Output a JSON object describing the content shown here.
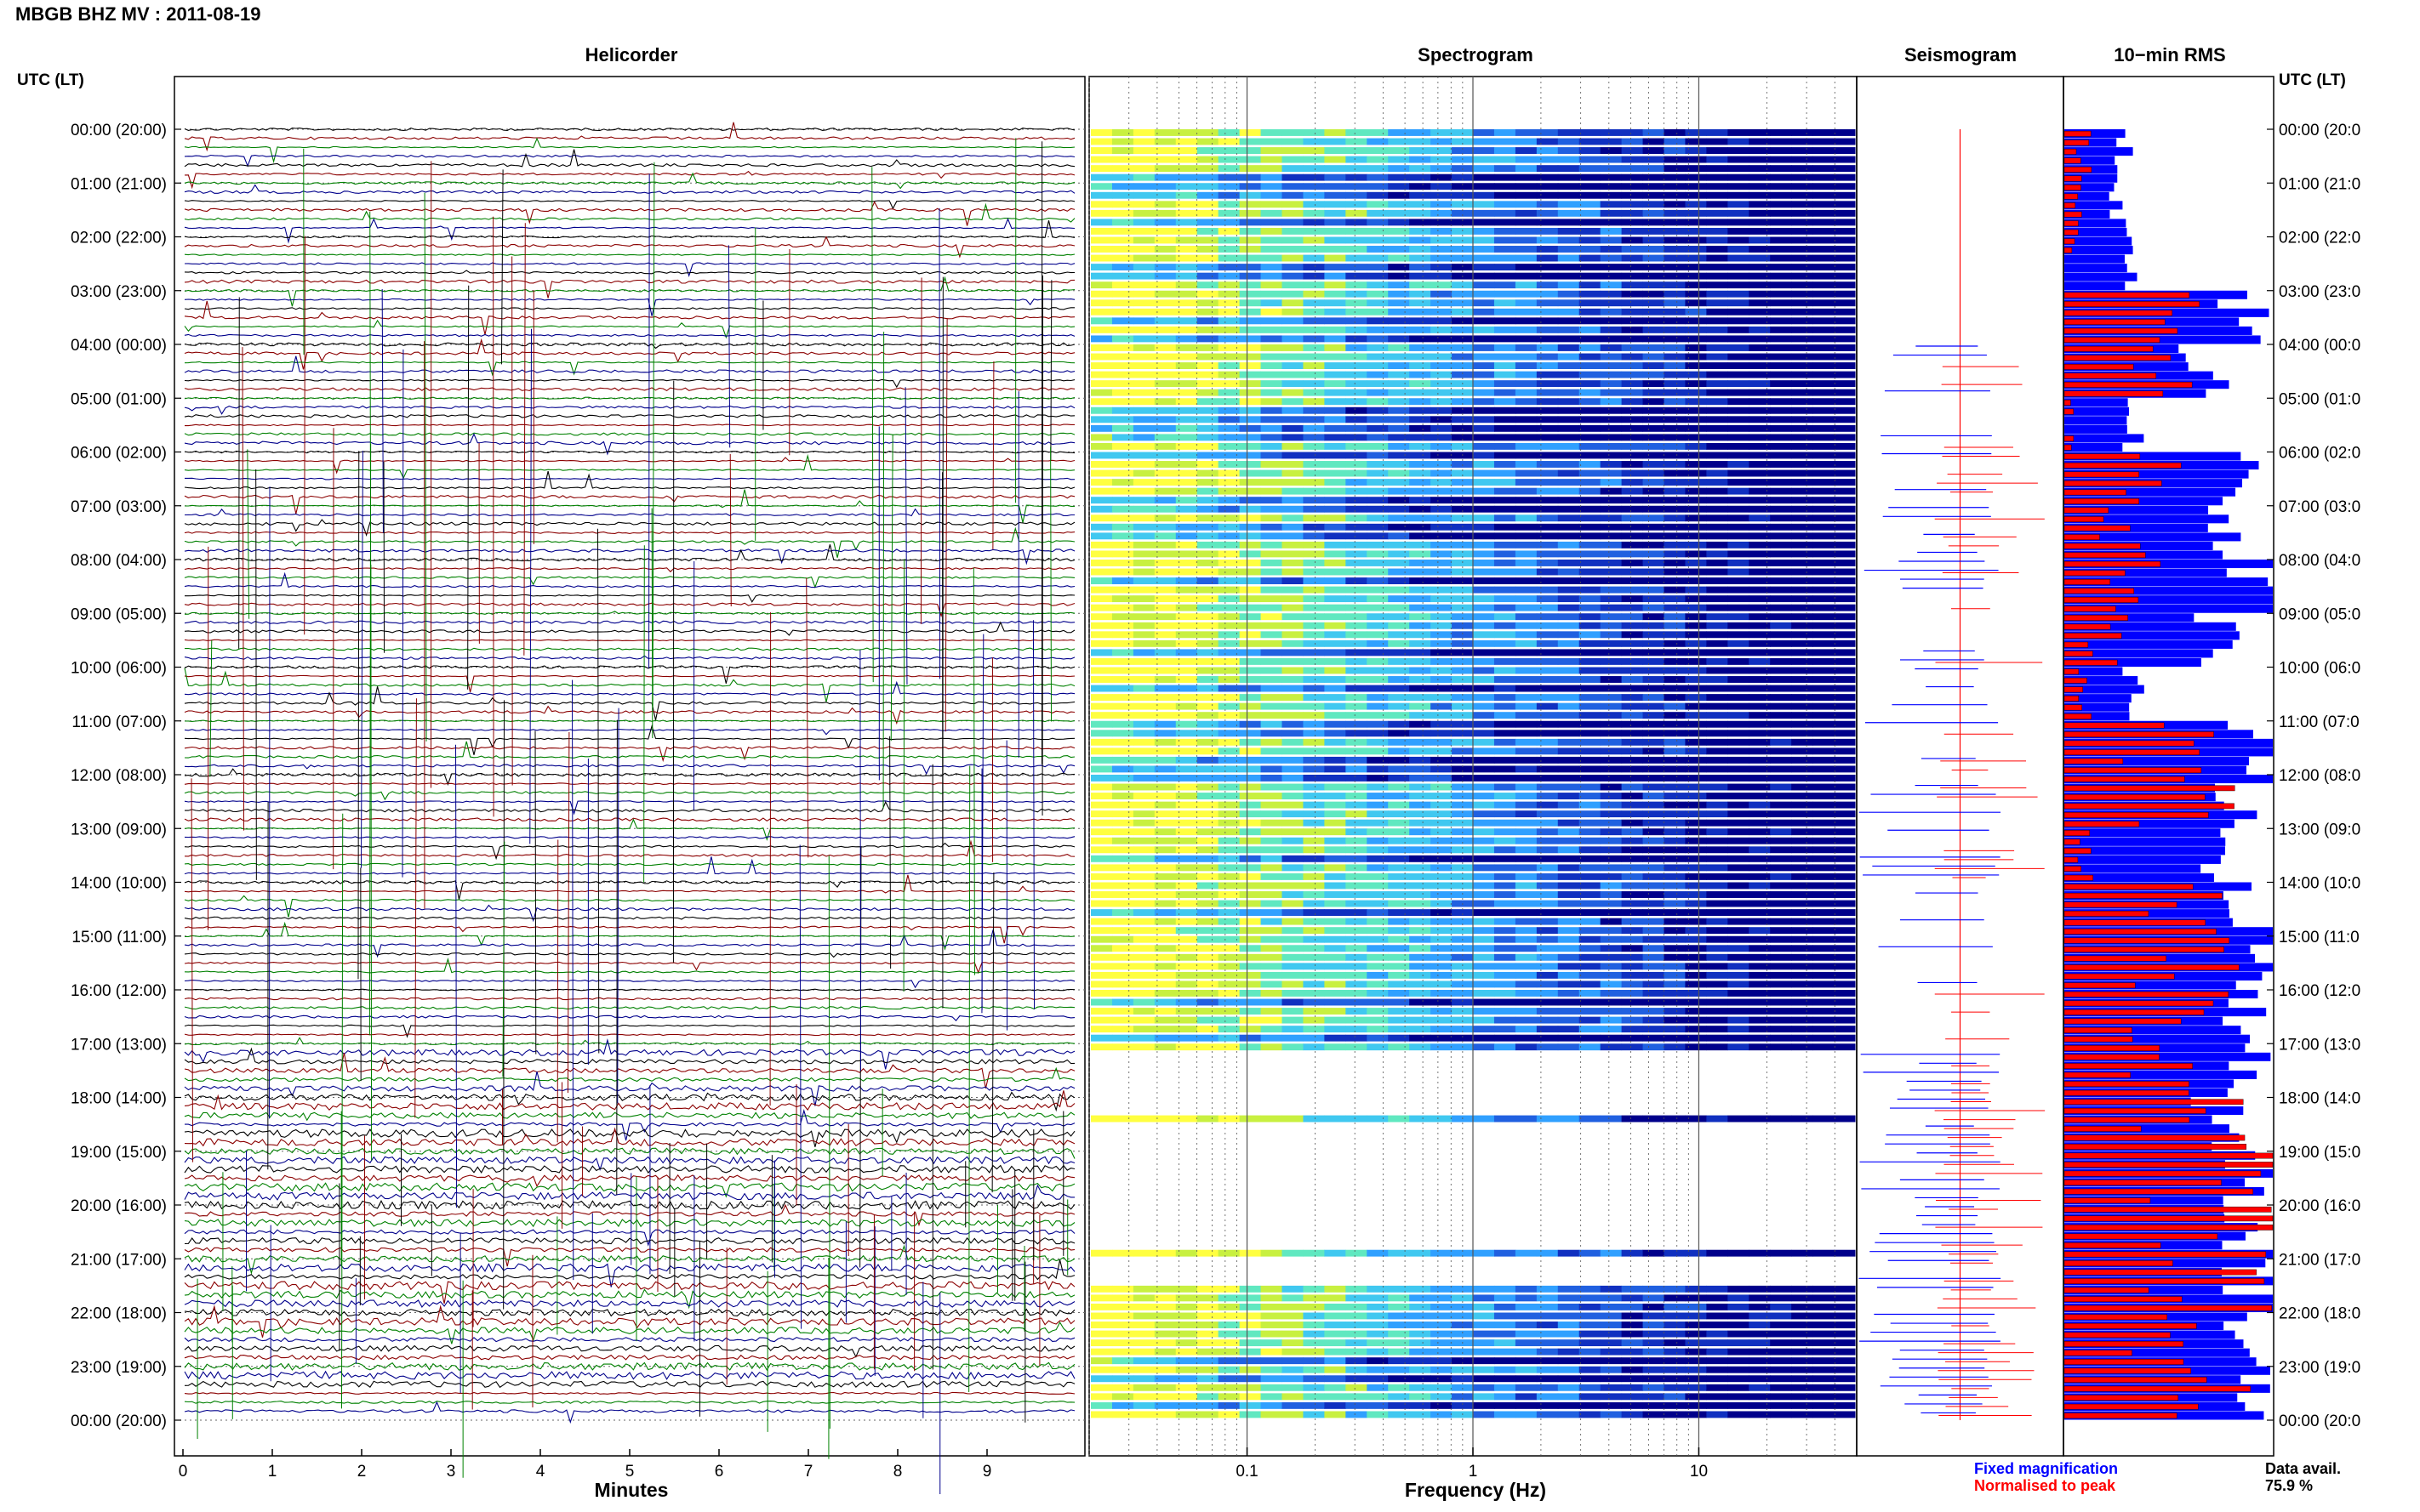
{
  "title": "MBGB BHZ MV : 2011-08-19",
  "panels": {
    "helicorder": "Helicorder",
    "spectrogram": "Spectrogram",
    "seismogram": "Seismogram",
    "rms": "10−min RMS"
  },
  "utc_label_left": "UTC (LT)",
  "utc_label_right": "UTC (LT)",
  "time_labels": [
    "00:00 (20:00)",
    "01:00 (21:00)",
    "02:00 (22:00)",
    "03:00 (23:00)",
    "04:00 (00:00)",
    "05:00 (01:00)",
    "06:00 (02:00)",
    "07:00 (03:00)",
    "08:00 (04:00)",
    "09:00 (05:00)",
    "10:00 (06:00)",
    "11:00 (07:00)",
    "12:00 (08:00)",
    "13:00 (09:00)",
    "14:00 (10:00)",
    "15:00 (11:00)",
    "16:00 (12:00)",
    "17:00 (13:00)",
    "18:00 (14:00)",
    "19:00 (15:00)",
    "20:00 (16:00)",
    "21:00 (17:00)",
    "22:00 (18:00)",
    "23:00 (19:00)",
    "00:00 (20:00)"
  ],
  "time_labels_right": [
    "00:00 (20:0",
    "01:00 (21:0",
    "02:00 (22:0",
    "03:00 (23:0",
    "04:00 (00:0",
    "05:00 (01:0",
    "06:00 (02:0",
    "07:00 (03:0",
    "08:00 (04:0",
    "09:00 (05:0",
    "10:00 (06:0",
    "11:00 (07:0",
    "12:00 (08:0",
    "13:00 (09:0",
    "14:00 (10:0",
    "15:00 (11:0",
    "16:00 (12:0",
    "17:00 (13:0",
    "18:00 (14:0",
    "19:00 (15:0",
    "20:00 (16:0",
    "21:00 (17:0",
    "22:00 (18:0",
    "23:00 (19:0",
    "00:00 (20:0"
  ],
  "legend": {
    "fixed": "Fixed magnification",
    "normalised": "Normalised to peak",
    "data_avail_label": "Data avail.",
    "data_avail_value": "75.9 %"
  },
  "colors": {
    "blue": "#0000ff",
    "red": "#ff0000",
    "trace_black": "#000000",
    "trace_darkred": "#8b0000",
    "trace_green": "#008000",
    "trace_navy": "#00008b"
  },
  "chart_data": [
    {
      "type": "line",
      "title": "Helicorder",
      "xlabel": "Minutes",
      "x_ticks": [
        "0",
        "1",
        "2",
        "3",
        "4",
        "5",
        "6",
        "7",
        "8",
        "9"
      ],
      "xlim": [
        0,
        10
      ],
      "rows": 144,
      "trace_colors": [
        "#000000",
        "#8b0000",
        "#008000",
        "#00008b"
      ],
      "grid": true
    },
    {
      "type": "heatmap",
      "title": "Spectrogram",
      "xlabel": "Frequency (Hz)",
      "x_scale": "log",
      "xlim": [
        0.02,
        50
      ],
      "x_ticks": [
        "0.1",
        "1",
        "10"
      ],
      "x_tick_values": [
        0.1,
        1,
        10
      ],
      "data_rows_end_hour": 17.1,
      "gap_hours": [
        [
          17.1,
          18.2
        ],
        [
          18.4,
          20.8
        ],
        [
          20.85,
          21.5
        ]
      ]
    },
    {
      "type": "line",
      "title": "Seismogram",
      "series": [
        {
          "name": "Fixed magnification",
          "color": "#0000ff"
        },
        {
          "name": "Normalised to peak",
          "color": "#ff0000"
        }
      ]
    },
    {
      "type": "bar",
      "title": "10−min RMS",
      "orientation": "horizontal",
      "interval_minutes": 10,
      "bins": 144,
      "rms_blue_hourly": [
        0.3,
        0.28,
        0.32,
        0.92,
        0.72,
        0.36,
        0.9,
        0.82,
        0.95,
        0.8,
        0.35,
        0.98,
        0.92,
        0.72,
        0.99,
        1.0,
        0.99,
        0.98,
        0.8,
        1.0,
        1.0,
        1.0,
        0.9,
        0.98
      ],
      "rms_red_hourly": [
        0.1,
        0.06,
        0.04,
        0.65,
        0.55,
        0.04,
        0.45,
        0.28,
        0.4,
        0.22,
        0.1,
        0.55,
        0.6,
        0.12,
        0.55,
        0.6,
        0.62,
        0.45,
        0.7,
        0.8,
        0.92,
        0.75,
        0.5,
        0.7
      ],
      "data_available_percent": 75.9
    }
  ]
}
